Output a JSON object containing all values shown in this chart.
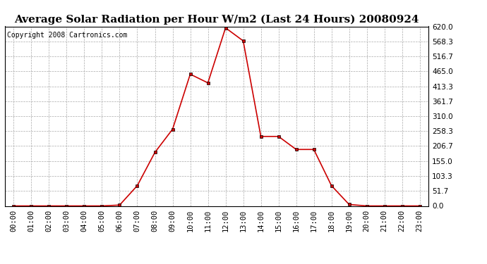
{
  "title": "Average Solar Radiation per Hour W/m2 (Last 24 Hours) 20080924",
  "copyright": "Copyright 2008 Cartronics.com",
  "hours": [
    "00:00",
    "01:00",
    "02:00",
    "03:00",
    "04:00",
    "05:00",
    "06:00",
    "07:00",
    "08:00",
    "09:00",
    "10:00",
    "11:00",
    "12:00",
    "13:00",
    "14:00",
    "15:00",
    "16:00",
    "17:00",
    "18:00",
    "19:00",
    "20:00",
    "21:00",
    "22:00",
    "23:00"
  ],
  "values": [
    0,
    0,
    0,
    0,
    0,
    0,
    3,
    70,
    185,
    265,
    455,
    425,
    615,
    570,
    240,
    240,
    195,
    195,
    70,
    5,
    0,
    0,
    0,
    0
  ],
  "line_color": "#cc0000",
  "marker": "s",
  "marker_size": 2.5,
  "background_color": "#ffffff",
  "grid_color": "#aaaaaa",
  "title_fontsize": 11,
  "copyright_fontsize": 7,
  "tick_label_fontsize": 7.5,
  "ymin": 0,
  "ymax": 620,
  "yticks": [
    0.0,
    51.7,
    103.3,
    155.0,
    206.7,
    258.3,
    310.0,
    361.7,
    413.3,
    465.0,
    516.7,
    568.3,
    620.0
  ]
}
